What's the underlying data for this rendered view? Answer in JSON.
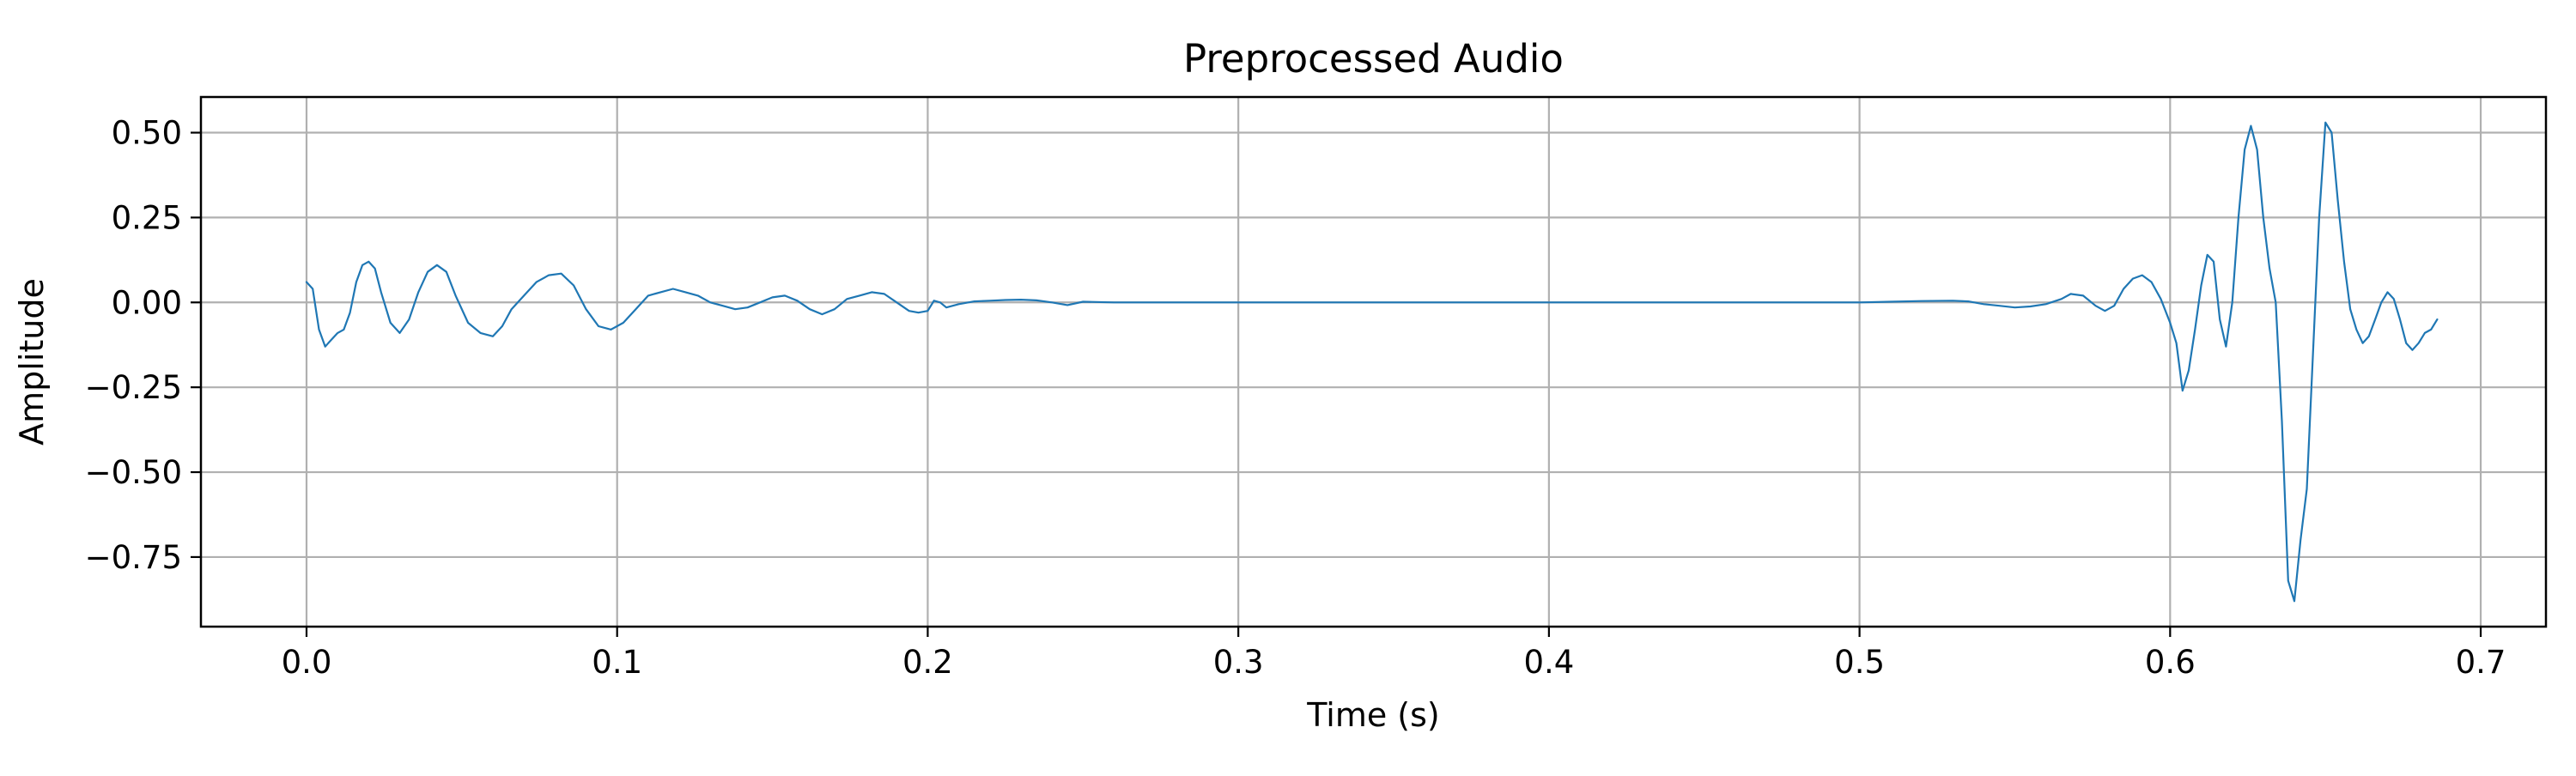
{
  "chart_data": {
    "type": "line",
    "title": "Preprocessed Audio",
    "xlabel": "Time (s)",
    "ylabel": "Amplitude",
    "xlim": [
      -0.034,
      0.721
    ],
    "ylim": [
      -0.955,
      0.605
    ],
    "xticks": [
      0.0,
      0.1,
      0.2,
      0.3,
      0.4,
      0.5,
      0.6,
      0.7
    ],
    "xtick_labels": [
      "0.0",
      "0.1",
      "0.2",
      "0.3",
      "0.4",
      "0.5",
      "0.6",
      "0.7"
    ],
    "yticks": [
      0.5,
      0.25,
      0.0,
      -0.25,
      -0.5,
      -0.75
    ],
    "ytick_labels": [
      "0.50",
      "0.25",
      "0.00",
      "−0.25",
      "−0.50",
      "−0.75"
    ],
    "grid": true,
    "series": [
      {
        "color": "#1f77b4",
        "x": [
          0.0,
          0.002,
          0.004,
          0.006,
          0.008,
          0.01,
          0.012,
          0.014,
          0.016,
          0.018,
          0.02,
          0.022,
          0.024,
          0.027,
          0.03,
          0.033,
          0.036,
          0.039,
          0.042,
          0.045,
          0.048,
          0.052,
          0.056,
          0.06,
          0.063,
          0.066,
          0.07,
          0.074,
          0.078,
          0.082,
          0.086,
          0.09,
          0.094,
          0.098,
          0.102,
          0.106,
          0.11,
          0.114,
          0.118,
          0.122,
          0.126,
          0.13,
          0.134,
          0.138,
          0.142,
          0.146,
          0.15,
          0.154,
          0.158,
          0.162,
          0.166,
          0.17,
          0.174,
          0.178,
          0.182,
          0.186,
          0.19,
          0.194,
          0.197,
          0.2,
          0.202,
          0.204,
          0.206,
          0.21,
          0.215,
          0.22,
          0.225,
          0.23,
          0.235,
          0.24,
          0.245,
          0.25,
          0.26,
          0.28,
          0.3,
          0.35,
          0.4,
          0.45,
          0.48,
          0.5,
          0.51,
          0.52,
          0.53,
          0.535,
          0.54,
          0.545,
          0.55,
          0.555,
          0.56,
          0.565,
          0.568,
          0.572,
          0.576,
          0.579,
          0.582,
          0.585,
          0.588,
          0.591,
          0.594,
          0.597,
          0.6,
          0.602,
          0.604,
          0.606,
          0.608,
          0.61,
          0.612,
          0.614,
          0.616,
          0.618,
          0.62,
          0.622,
          0.624,
          0.626,
          0.628,
          0.63,
          0.632,
          0.634,
          0.636,
          0.638,
          0.64,
          0.642,
          0.644,
          0.646,
          0.648,
          0.65,
          0.652,
          0.654,
          0.656,
          0.658,
          0.66,
          0.662,
          0.664,
          0.666,
          0.668,
          0.67,
          0.672,
          0.674,
          0.676,
          0.678,
          0.68,
          0.682,
          0.684,
          0.686
        ],
        "y": [
          0.06,
          0.04,
          -0.08,
          -0.13,
          -0.11,
          -0.09,
          -0.08,
          -0.03,
          0.06,
          0.11,
          0.12,
          0.1,
          0.03,
          -0.06,
          -0.09,
          -0.05,
          0.03,
          0.09,
          0.11,
          0.09,
          0.02,
          -0.06,
          -0.09,
          -0.1,
          -0.07,
          -0.02,
          0.02,
          0.06,
          0.08,
          0.085,
          0.05,
          -0.02,
          -0.07,
          -0.08,
          -0.06,
          -0.02,
          0.02,
          0.03,
          0.04,
          0.03,
          0.02,
          0.0,
          -0.01,
          -0.02,
          -0.015,
          0.0,
          0.015,
          0.02,
          0.005,
          -0.02,
          -0.035,
          -0.02,
          0.01,
          0.02,
          0.03,
          0.025,
          0.0,
          -0.025,
          -0.03,
          -0.025,
          0.005,
          0.0,
          -0.015,
          -0.005,
          0.003,
          0.005,
          0.007,
          0.008,
          0.006,
          0.0,
          -0.008,
          0.002,
          0.0,
          0.0,
          0.0,
          0.0,
          0.0,
          0.0,
          0.0,
          0.0,
          0.002,
          0.004,
          0.005,
          0.003,
          -0.005,
          -0.01,
          -0.015,
          -0.012,
          -0.005,
          0.01,
          0.025,
          0.02,
          -0.01,
          -0.025,
          -0.01,
          0.04,
          0.07,
          0.08,
          0.06,
          0.01,
          -0.06,
          -0.12,
          -0.26,
          -0.2,
          -0.08,
          0.05,
          0.14,
          0.12,
          -0.05,
          -0.13,
          0.0,
          0.25,
          0.45,
          0.52,
          0.45,
          0.25,
          0.1,
          0.0,
          -0.35,
          -0.82,
          -0.88,
          -0.7,
          -0.55,
          -0.15,
          0.25,
          0.53,
          0.5,
          0.3,
          0.12,
          -0.02,
          -0.08,
          -0.12,
          -0.1,
          -0.05,
          0.0,
          0.03,
          0.01,
          -0.05,
          -0.12,
          -0.14,
          -0.12,
          -0.09,
          -0.08,
          -0.05
        ]
      }
    ]
  }
}
